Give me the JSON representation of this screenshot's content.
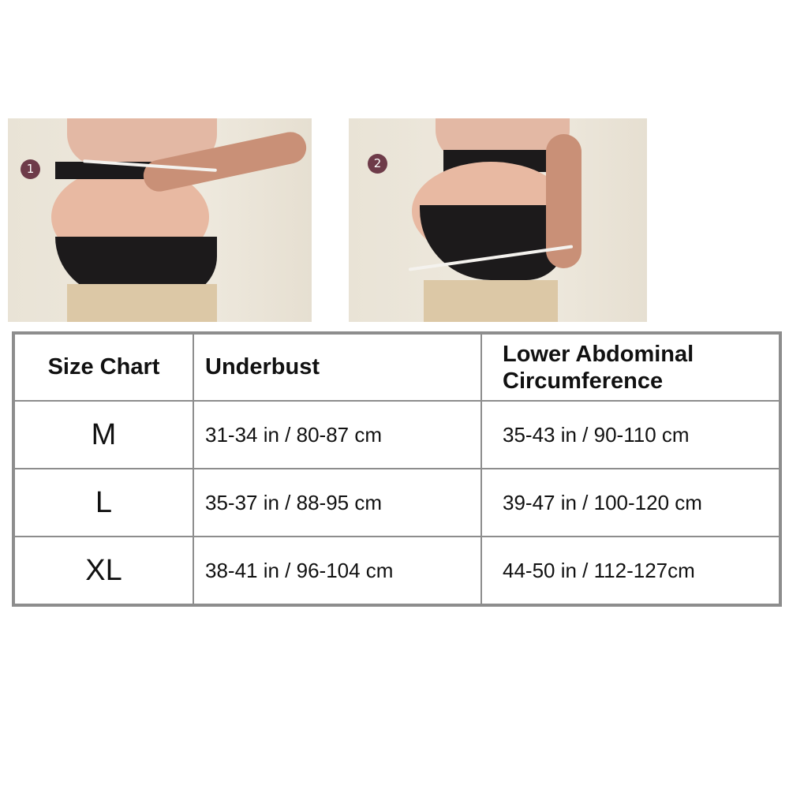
{
  "photos": [
    {
      "step": "1",
      "description_icon": "measuring-underbust-photo"
    },
    {
      "step": "2",
      "description_icon": "measuring-lower-abdomen-photo"
    }
  ],
  "colors": {
    "badge": "#6e3b49",
    "border": "#8d8d8d",
    "band": "#1c1a1b"
  },
  "table": {
    "headers": [
      "Size Chart",
      "Underbust",
      "Lower Abdominal Circumference"
    ],
    "rows": [
      {
        "size": "M",
        "underbust": "31-34 in / 80-87 cm",
        "abdominal": "35-43 in / 90-110 cm"
      },
      {
        "size": "L",
        "underbust": "35-37 in / 88-95 cm",
        "abdominal": "39-47 in / 100-120 cm"
      },
      {
        "size": "XL",
        "underbust": "38-41 in / 96-104 cm",
        "abdominal": "44-50 in / 112-127cm"
      }
    ]
  }
}
